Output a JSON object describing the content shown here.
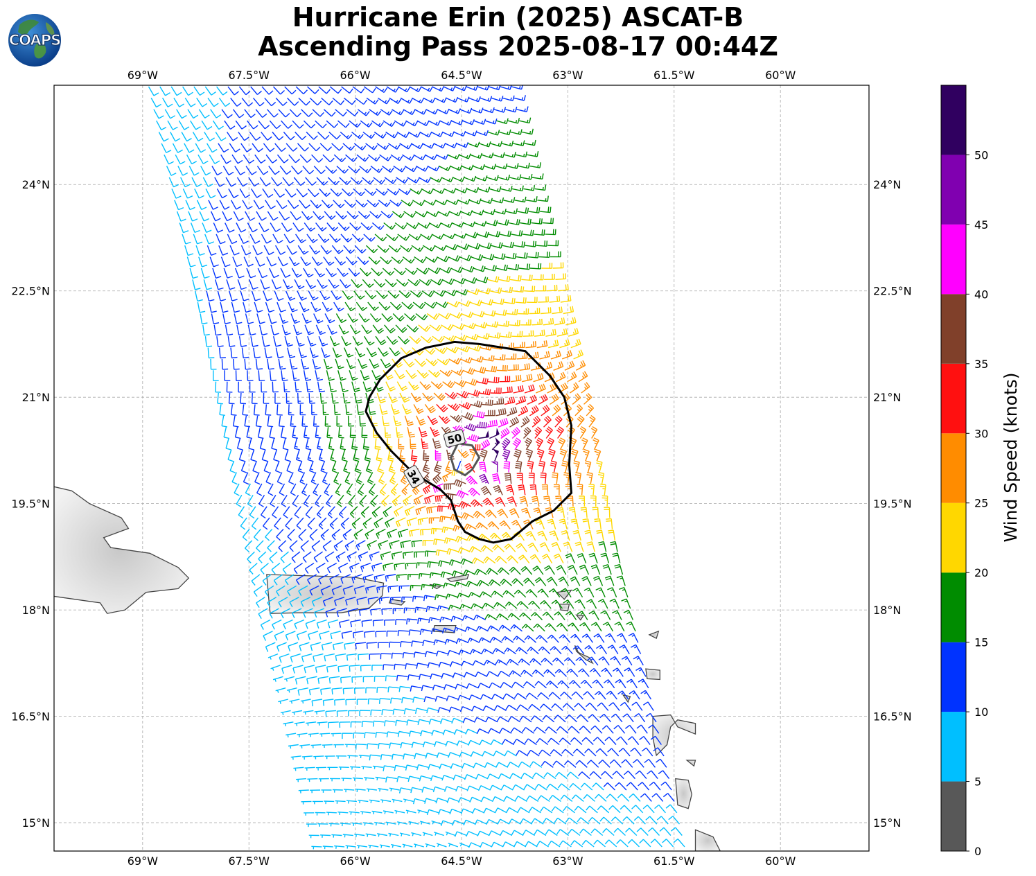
{
  "title": {
    "line1": "Hurricane Erin (2025) ASCAT-B",
    "line2": "Ascending Pass 2025-08-17 00:44Z"
  },
  "logo": {
    "text": "COAPS",
    "icon": "globe-icon"
  },
  "map": {
    "projection": "PlateCarree",
    "lon_range": [
      -70.25,
      -58.75
    ],
    "lat_range": [
      14.6,
      25.4
    ],
    "lon_ticks": [
      "69°W",
      "67.5°W",
      "66°W",
      "64.5°W",
      "63°W",
      "61.5°W",
      "60°W"
    ],
    "lat_ticks": [
      "24°N",
      "22.5°N",
      "21°N",
      "19.5°N",
      "18°N",
      "16.5°N",
      "15°N"
    ],
    "grid": true,
    "storm_center": {
      "lon": -64.45,
      "lat": 20.1
    },
    "contours": [
      {
        "label": "34",
        "color": "#000000",
        "units": "knots"
      },
      {
        "label": "50",
        "color": "#555555",
        "units": "knots"
      }
    ]
  },
  "colorbar": {
    "label": "Wind Speed (knots)",
    "tick_labels": [
      "0",
      "5",
      "10",
      "15",
      "20",
      "25",
      "30",
      "35",
      "40",
      "45",
      "50"
    ],
    "bins": [
      {
        "min": 0,
        "max": 5,
        "color": "#585858"
      },
      {
        "min": 5,
        "max": 10,
        "color": "#00BFFF"
      },
      {
        "min": 10,
        "max": 15,
        "color": "#0033FF"
      },
      {
        "min": 15,
        "max": 20,
        "color": "#008C00"
      },
      {
        "min": 20,
        "max": 25,
        "color": "#FFD700"
      },
      {
        "min": 25,
        "max": 30,
        "color": "#FF8C00"
      },
      {
        "min": 30,
        "max": 35,
        "color": "#FF1010"
      },
      {
        "min": 35,
        "max": 40,
        "color": "#80402A"
      },
      {
        "min": 40,
        "max": 45,
        "color": "#FF00FF"
      },
      {
        "min": 45,
        "max": 50,
        "color": "#8000B0"
      },
      {
        "min": 50,
        "max": 55,
        "color": "#300060"
      }
    ]
  }
}
